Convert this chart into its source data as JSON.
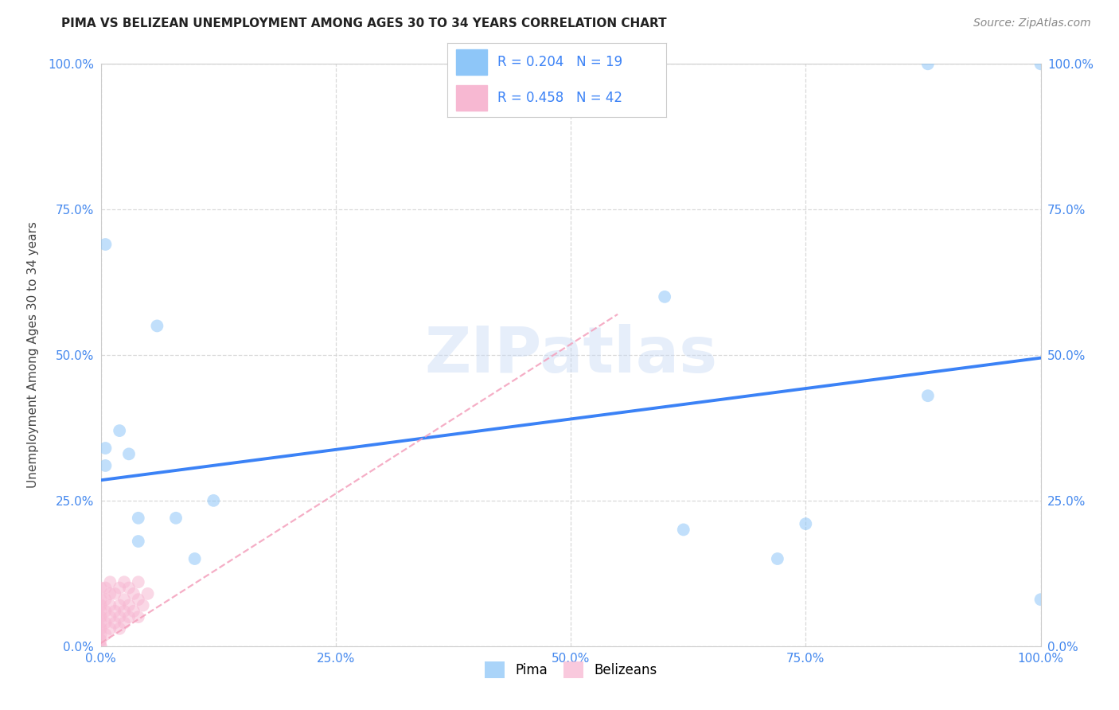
{
  "title": "PIMA VS BELIZEAN UNEMPLOYMENT AMONG AGES 30 TO 34 YEARS CORRELATION CHART",
  "source": "Source: ZipAtlas.com",
  "ylabel": "Unemployment Among Ages 30 to 34 years",
  "xlim": [
    0,
    1.0
  ],
  "ylim": [
    0,
    1.0
  ],
  "xticks": [
    0.0,
    0.25,
    0.5,
    0.75,
    1.0
  ],
  "yticks": [
    0.0,
    0.25,
    0.5,
    0.75,
    1.0
  ],
  "xtick_labels": [
    "0.0%",
    "25.0%",
    "50.0%",
    "75.0%",
    "100.0%"
  ],
  "ytick_labels": [
    "0.0%",
    "25.0%",
    "50.0%",
    "75.0%",
    "100.0%"
  ],
  "background_color": "#ffffff",
  "grid_color": "#d0d0d0",
  "pima_color": "#8ec6f8",
  "belizean_color": "#f7b8d2",
  "pima_line_color": "#3b82f6",
  "belizean_line_color": "#f4a0bc",
  "tick_color": "#4488ee",
  "legend_R_color": "#3b82f6",
  "pima_R": 0.204,
  "pima_N": 19,
  "belizean_R": 0.458,
  "belizean_N": 42,
  "pima_scatter_x": [
    0.005,
    0.005,
    0.005,
    0.02,
    0.03,
    0.04,
    0.04,
    0.06,
    0.08,
    0.1,
    0.12,
    0.6,
    0.72,
    0.75,
    0.88,
    0.88,
    1.0,
    1.0,
    0.62
  ],
  "pima_scatter_y": [
    0.69,
    0.34,
    0.31,
    0.37,
    0.33,
    0.22,
    0.18,
    0.55,
    0.22,
    0.15,
    0.25,
    0.6,
    0.15,
    0.21,
    0.43,
    1.0,
    1.0,
    0.08,
    0.2
  ],
  "belizean_scatter_x": [
    0.0,
    0.0,
    0.0,
    0.0,
    0.0,
    0.0,
    0.0,
    0.0,
    0.0,
    0.0,
    0.0,
    0.005,
    0.005,
    0.005,
    0.005,
    0.005,
    0.01,
    0.01,
    0.01,
    0.01,
    0.01,
    0.015,
    0.015,
    0.015,
    0.02,
    0.02,
    0.02,
    0.02,
    0.025,
    0.025,
    0.025,
    0.025,
    0.03,
    0.03,
    0.03,
    0.035,
    0.035,
    0.04,
    0.04,
    0.04,
    0.045,
    0.05
  ],
  "belizean_scatter_y": [
    0.0,
    0.0,
    0.01,
    0.02,
    0.03,
    0.04,
    0.05,
    0.06,
    0.07,
    0.08,
    0.1,
    0.02,
    0.04,
    0.06,
    0.08,
    0.1,
    0.03,
    0.05,
    0.07,
    0.09,
    0.11,
    0.04,
    0.06,
    0.09,
    0.03,
    0.05,
    0.07,
    0.1,
    0.04,
    0.06,
    0.08,
    0.11,
    0.05,
    0.07,
    0.1,
    0.06,
    0.09,
    0.05,
    0.08,
    0.11,
    0.07,
    0.09
  ],
  "pima_trend_x": [
    0.0,
    1.0
  ],
  "pima_trend_y": [
    0.285,
    0.495
  ],
  "belizean_trend_x": [
    0.0,
    0.55
  ],
  "belizean_trend_y": [
    0.005,
    0.57
  ],
  "marker_size": 130,
  "marker_alpha": 0.55,
  "title_fontsize": 11,
  "source_fontsize": 10,
  "tick_fontsize": 11,
  "ylabel_fontsize": 11
}
